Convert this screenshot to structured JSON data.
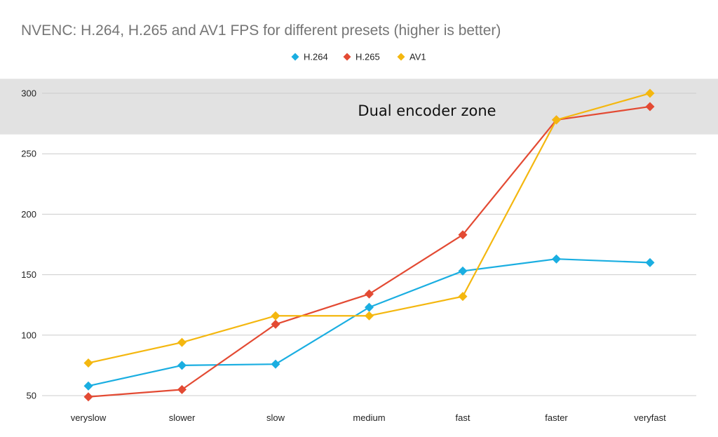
{
  "chart_data": {
    "type": "line",
    "title": "NVENC: H.264, H.265 and AV1 FPS for different presets (higher is better)",
    "categories": [
      "veryslow",
      "slower",
      "slow",
      "medium",
      "fast",
      "faster",
      "veryfast"
    ],
    "ylim": [
      45,
      310
    ],
    "yticks": [
      50,
      100,
      150,
      200,
      250,
      300
    ],
    "grid": true,
    "legend_position": "top",
    "series": [
      {
        "name": "H.264",
        "color": "#1aaee1",
        "values": [
          58,
          75,
          76,
          123,
          153,
          163,
          160
        ]
      },
      {
        "name": "H.265",
        "color": "#e34a33",
        "values": [
          49,
          55,
          109,
          134,
          183,
          278,
          289
        ]
      },
      {
        "name": "AV1",
        "color": "#f4b70f",
        "values": [
          77,
          94,
          116,
          116,
          132,
          278,
          300
        ]
      }
    ],
    "band": {
      "label": "Dual encoder zone",
      "y_from": 266,
      "y_to": 312,
      "color": "#e2e2e2"
    }
  }
}
